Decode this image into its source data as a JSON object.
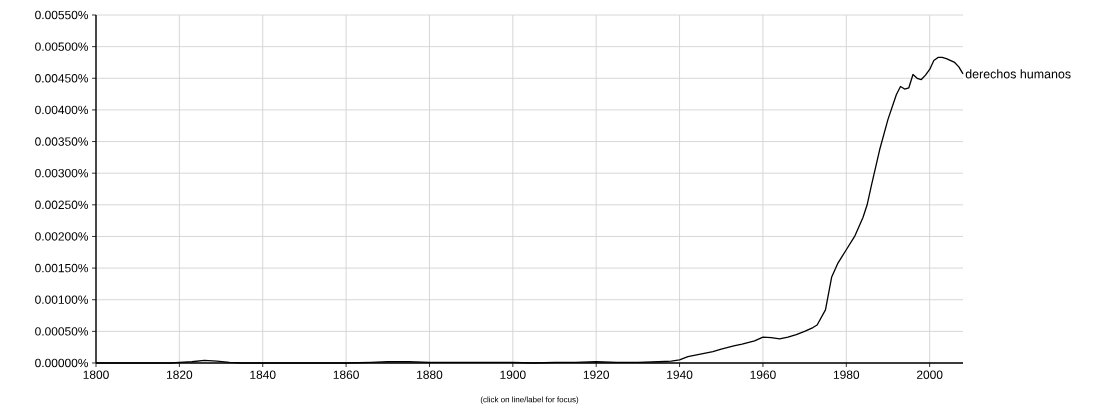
{
  "chart_data": {
    "type": "line",
    "annotations": [
      "(click on line/label for focus)"
    ],
    "x": [
      1800,
      1810,
      1818,
      1820,
      1823,
      1826,
      1829,
      1832,
      1835,
      1840,
      1850,
      1860,
      1866,
      1870,
      1875,
      1880,
      1885,
      1890,
      1895,
      1900,
      1905,
      1910,
      1915,
      1920,
      1925,
      1930,
      1935,
      1938,
      1940,
      1942,
      1945,
      1948,
      1950,
      1953,
      1955,
      1958,
      1960,
      1962,
      1964,
      1966,
      1968,
      1970,
      1972,
      1973,
      1975,
      1976.5,
      1978,
      1980,
      1982,
      1984,
      1985,
      1986,
      1988,
      1990,
      1992,
      1993,
      1994,
      1995,
      1996,
      1997,
      1998,
      1999,
      2000,
      2001,
      2002,
      2003,
      2004,
      2005,
      2006,
      2007,
      2008
    ],
    "series": [
      {
        "name": "derechos humanos",
        "color": "#000000",
        "values": [
          0,
          0,
          0,
          1e-05,
          2e-05,
          4e-05,
          3e-05,
          1e-05,
          0,
          0,
          0,
          0,
          1e-05,
          2e-05,
          2e-05,
          1e-05,
          1e-05,
          1e-05,
          1e-05,
          1e-05,
          0,
          1e-05,
          1e-05,
          2e-05,
          1e-05,
          1e-05,
          2e-05,
          3e-05,
          5e-05,
          0.0001,
          0.00014,
          0.00018,
          0.00022,
          0.00027,
          0.0003,
          0.00035,
          0.00041,
          0.0004,
          0.00038,
          0.00041,
          0.00045,
          0.0005,
          0.00056,
          0.0006,
          0.00084,
          0.00136,
          0.00158,
          0.00179,
          0.002,
          0.0023,
          0.0025,
          0.0028,
          0.00337,
          0.00385,
          0.00424,
          0.00437,
          0.00433,
          0.00435,
          0.00456,
          0.0045,
          0.00448,
          0.00455,
          0.00464,
          0.00478,
          0.00483,
          0.00483,
          0.00481,
          0.00478,
          0.00475,
          0.00468,
          0.00457
        ]
      }
    ],
    "xlim": [
      1800,
      2008
    ],
    "ylim": [
      0,
      0.0055
    ],
    "xticks": [
      1800,
      1820,
      1840,
      1860,
      1880,
      1900,
      1920,
      1940,
      1960,
      1980,
      2000
    ],
    "yticks": [
      {
        "value": 0,
        "label": "0.00000%"
      },
      {
        "value": 0.0005,
        "label": "0.00050%"
      },
      {
        "value": 0.001,
        "label": "0.00100%"
      },
      {
        "value": 0.0015,
        "label": "0.00150%"
      },
      {
        "value": 0.002,
        "label": "0.00200%"
      },
      {
        "value": 0.0025,
        "label": "0.00250%"
      },
      {
        "value": 0.003,
        "label": "0.00300%"
      },
      {
        "value": 0.0035,
        "label": "0.00350%"
      },
      {
        "value": 0.004,
        "label": "0.00400%"
      },
      {
        "value": 0.0045,
        "label": "0.00450%"
      },
      {
        "value": 0.005,
        "label": "0.00500%"
      },
      {
        "value": 0.0055,
        "label": "0.00550%"
      }
    ],
    "grid": true,
    "legend": false,
    "marker": "none",
    "line_style": "solid"
  }
}
